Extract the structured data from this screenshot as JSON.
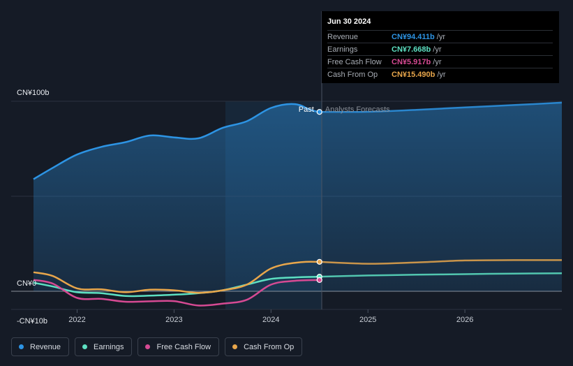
{
  "chart_data": {
    "type": "line",
    "y_unit": "CN¥ billions",
    "ylim": [
      -10,
      100
    ],
    "y_labels": [
      "CN¥100b",
      "CN¥0",
      "-CN¥10b"
    ],
    "x_ticks": [
      "2022",
      "2023",
      "2024",
      "2025",
      "2026"
    ],
    "xlim": [
      2021.55,
      2027.0
    ],
    "divider_x": 2024.5,
    "forecast_from": 2023.5,
    "region_labels": {
      "past": "Past",
      "forecast": "Analysts Forecasts"
    },
    "series": [
      {
        "name": "Revenue",
        "key": "revenue",
        "color": "#2d94e4",
        "filled": true,
        "x": [
          2021.55,
          2021.75,
          2022.0,
          2022.25,
          2022.5,
          2022.75,
          2023.0,
          2023.25,
          2023.5,
          2023.75,
          2024.0,
          2024.25,
          2024.5,
          2025.0,
          2025.5,
          2026.0,
          2026.5,
          2027.0
        ],
        "y": [
          59,
          65,
          72,
          76,
          78.5,
          82,
          81,
          80.5,
          86,
          89.5,
          96.5,
          98.5,
          94.4,
          94.5,
          95.5,
          96.8,
          98,
          99.3
        ]
      },
      {
        "name": "Earnings",
        "key": "earnings",
        "color": "#5de0c2",
        "filled": false,
        "x": [
          2021.55,
          2021.75,
          2022.0,
          2022.25,
          2022.5,
          2022.75,
          2023.0,
          2023.25,
          2023.5,
          2023.75,
          2024.0,
          2024.25,
          2024.5,
          2025.0,
          2025.5,
          2026.0,
          2026.5,
          2027.0
        ],
        "y": [
          4.5,
          2.5,
          -0.5,
          -1,
          -2.5,
          -2.3,
          -1.8,
          -1,
          0.5,
          3.5,
          6.5,
          7.3,
          7.67,
          8.3,
          8.7,
          9.0,
          9.3,
          9.5
        ]
      },
      {
        "name": "Free Cash Flow",
        "key": "free_cash_flow",
        "color": "#d64a93",
        "filled": false,
        "x": [
          2021.55,
          2021.75,
          2022.0,
          2022.25,
          2022.5,
          2022.75,
          2023.0,
          2023.25,
          2023.5,
          2023.75,
          2024.0,
          2024.25,
          2024.5
        ],
        "y": [
          6,
          4,
          -3.5,
          -4,
          -5.5,
          -5.3,
          -5.2,
          -7.5,
          -6.5,
          -4.5,
          3.5,
          5.5,
          5.92
        ]
      },
      {
        "name": "Cash From Op",
        "key": "cash_from_op",
        "color": "#e8a64b",
        "filled": false,
        "x": [
          2021.55,
          2021.75,
          2022.0,
          2022.25,
          2022.5,
          2022.75,
          2023.0,
          2023.25,
          2023.5,
          2023.75,
          2024.0,
          2024.25,
          2024.5,
          2025.0,
          2025.5,
          2026.0,
          2026.5,
          2027.0
        ],
        "y": [
          10,
          8,
          1.5,
          1,
          -0.5,
          0.8,
          0.5,
          -0.8,
          0.5,
          3.5,
          12,
          15,
          15.49,
          14.5,
          15.2,
          16.2,
          16.4,
          16.4
        ]
      }
    ]
  },
  "tooltip": {
    "date": "Jun 30 2024",
    "rows": [
      {
        "label": "Revenue",
        "value": "CN¥94.411b",
        "unit": "/yr",
        "color": "#2d94e4"
      },
      {
        "label": "Earnings",
        "value": "CN¥7.668b",
        "unit": "/yr",
        "color": "#5de0c2"
      },
      {
        "label": "Free Cash Flow",
        "value": "CN¥5.917b",
        "unit": "/yr",
        "color": "#d64a93"
      },
      {
        "label": "Cash From Op",
        "value": "CN¥15.490b",
        "unit": "/yr",
        "color": "#e8a64b"
      }
    ]
  },
  "legend": [
    {
      "label": "Revenue",
      "color": "#2d94e4"
    },
    {
      "label": "Earnings",
      "color": "#5de0c2"
    },
    {
      "label": "Free Cash Flow",
      "color": "#d64a93"
    },
    {
      "label": "Cash From Op",
      "color": "#e8a64b"
    }
  ]
}
